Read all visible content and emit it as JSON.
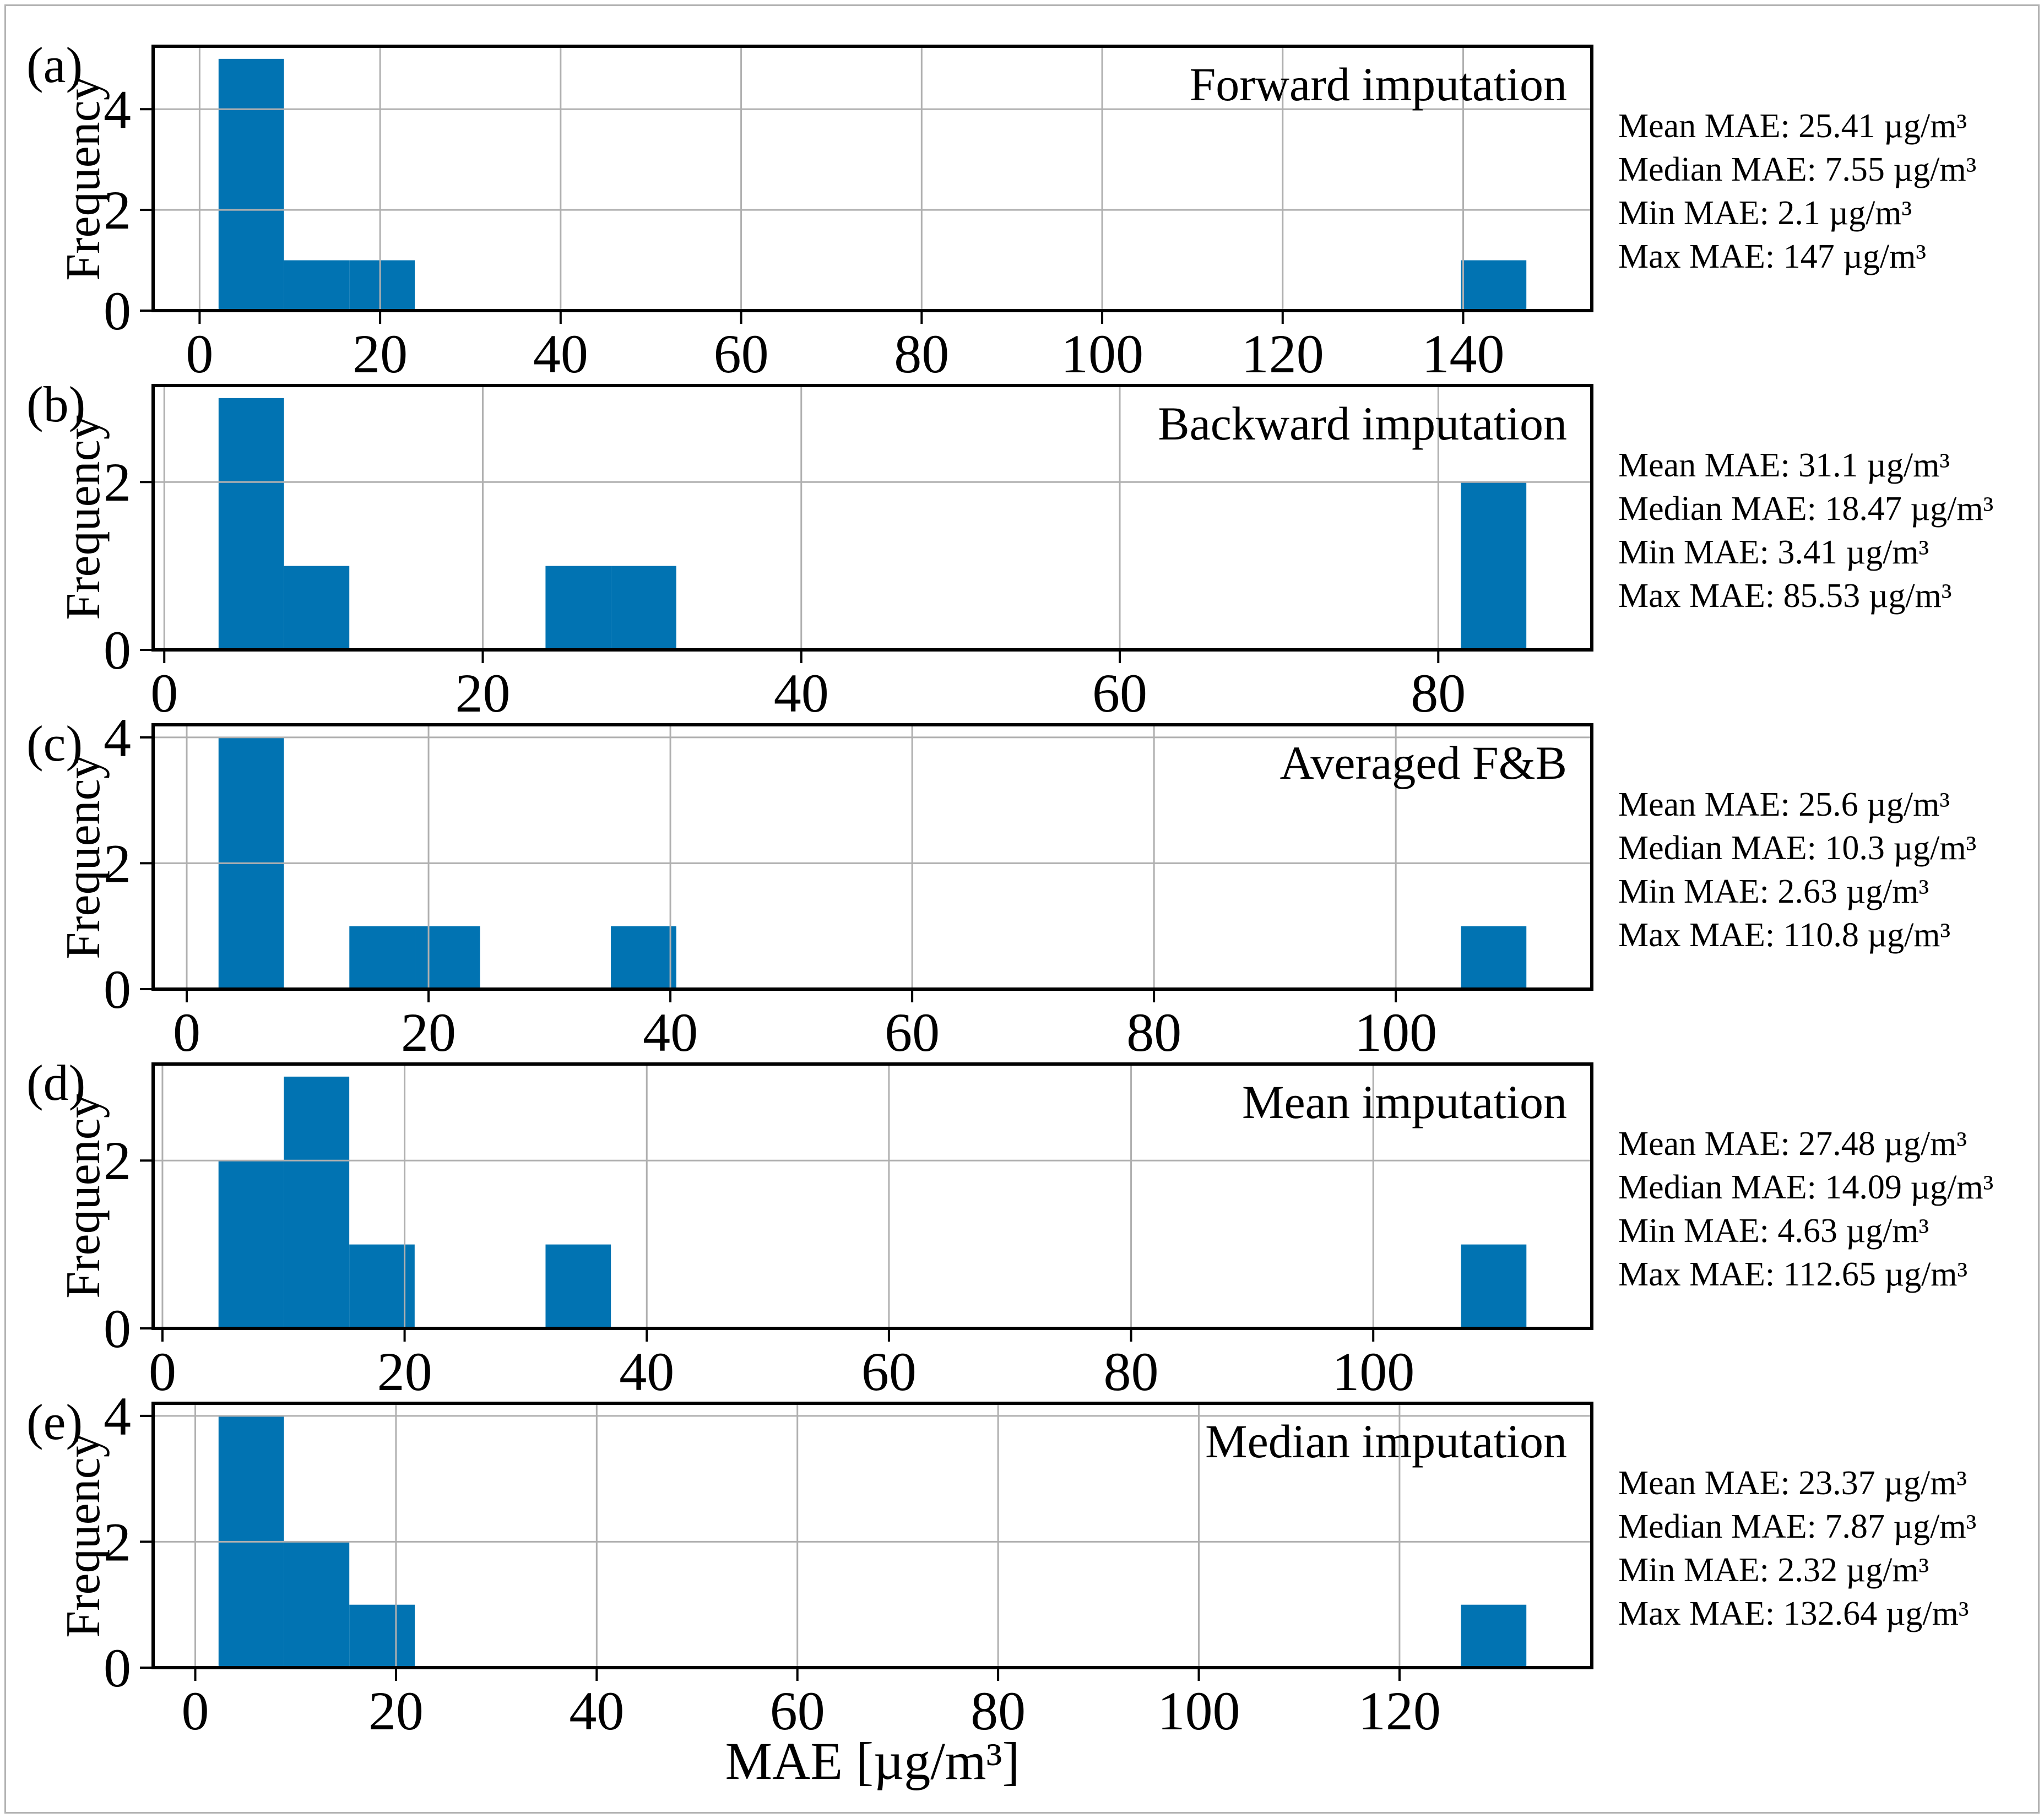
{
  "figure": {
    "xlabel": "MAE [µg/m³]",
    "ylabel": "Frequency",
    "bar_color": "#0173b2",
    "grid_color": "#b0b0b0",
    "spine_color": "#000000",
    "frame_color": "#b3b3b3"
  },
  "chart_data": [
    {
      "type": "bar",
      "panel": "(a)",
      "title": "Forward imputation",
      "ylabel": "Frequency",
      "xlim": [
        -5.15,
        154.25
      ],
      "ylim": [
        0,
        5.25
      ],
      "xticks": [
        0,
        20,
        40,
        60,
        80,
        100,
        120,
        140
      ],
      "yticks": [
        0,
        2,
        4
      ],
      "bars": [
        {
          "x0": 2.1,
          "x1": 9.35,
          "h": 5
        },
        {
          "x0": 9.35,
          "x1": 16.59,
          "h": 1
        },
        {
          "x0": 16.59,
          "x1": 23.84,
          "h": 1
        },
        {
          "x0": 139.76,
          "x1": 147.0,
          "h": 1
        }
      ],
      "stats": [
        "Mean MAE: 25.41 µg/m³",
        "Median MAE: 7.55 µg/m³",
        "Min MAE: 2.1 µg/m³",
        "Max MAE: 147 µg/m³"
      ]
    },
    {
      "type": "bar",
      "panel": "(b)",
      "title": "Backward imputation",
      "ylabel": "Frequency",
      "xlim": [
        -0.7,
        89.64
      ],
      "ylim": [
        0,
        3.15
      ],
      "xticks": [
        0,
        20,
        40,
        60,
        80
      ],
      "yticks": [
        0,
        2
      ],
      "bars": [
        {
          "x0": 3.41,
          "x1": 7.52,
          "h": 3
        },
        {
          "x0": 7.52,
          "x1": 11.62,
          "h": 1
        },
        {
          "x0": 23.94,
          "x1": 28.05,
          "h": 1
        },
        {
          "x0": 28.05,
          "x1": 32.15,
          "h": 1
        },
        {
          "x0": 81.42,
          "x1": 85.53,
          "h": 2
        }
      ],
      "stats": [
        "Mean MAE: 31.1 µg/m³",
        "Median MAE: 18.47 µg/m³",
        "Min MAE: 3.41 µg/m³",
        "Max MAE: 85.53 µg/m³"
      ]
    },
    {
      "type": "bar",
      "panel": "(c)",
      "title": "Averaged F&B",
      "ylabel": "Frequency",
      "xlim": [
        -2.78,
        116.21
      ],
      "ylim": [
        0,
        4.2
      ],
      "xticks": [
        0,
        20,
        40,
        60,
        80,
        100
      ],
      "yticks": [
        0,
        2,
        4
      ],
      "bars": [
        {
          "x0": 2.63,
          "x1": 8.04,
          "h": 4
        },
        {
          "x0": 13.45,
          "x1": 18.86,
          "h": 1
        },
        {
          "x0": 18.86,
          "x1": 24.26,
          "h": 1
        },
        {
          "x0": 35.08,
          "x1": 40.49,
          "h": 1
        },
        {
          "x0": 105.39,
          "x1": 110.8,
          "h": 1
        }
      ],
      "stats": [
        "Mean MAE: 25.6 µg/m³",
        "Median MAE: 10.3 µg/m³",
        "Min MAE: 2.63 µg/m³",
        "Max MAE: 110.8 µg/m³"
      ]
    },
    {
      "type": "bar",
      "panel": "(d)",
      "title": "Mean imputation",
      "ylabel": "Frequency",
      "xlim": [
        -0.77,
        118.05
      ],
      "ylim": [
        0,
        3.15
      ],
      "xticks": [
        0,
        20,
        40,
        60,
        80,
        100
      ],
      "yticks": [
        0,
        2
      ],
      "bars": [
        {
          "x0": 4.63,
          "x1": 10.03,
          "h": 2
        },
        {
          "x0": 10.03,
          "x1": 15.43,
          "h": 3
        },
        {
          "x0": 15.43,
          "x1": 20.83,
          "h": 1
        },
        {
          "x0": 31.64,
          "x1": 37.04,
          "h": 1
        },
        {
          "x0": 107.25,
          "x1": 112.65,
          "h": 1
        }
      ],
      "stats": [
        "Mean MAE: 27.48 µg/m³",
        "Median MAE: 14.09 µg/m³",
        "Min MAE: 4.63 µg/m³",
        "Max MAE: 112.65 µg/m³"
      ]
    },
    {
      "type": "bar",
      "panel": "(e)",
      "title": "Median imputation",
      "ylabel": "Frequency",
      "xlim": [
        -4.2,
        139.16
      ],
      "ylim": [
        0,
        4.2
      ],
      "xticks": [
        0,
        20,
        40,
        60,
        80,
        100,
        120
      ],
      "yticks": [
        0,
        2,
        4
      ],
      "bars": [
        {
          "x0": 2.32,
          "x1": 8.84,
          "h": 4
        },
        {
          "x0": 8.84,
          "x1": 15.35,
          "h": 2
        },
        {
          "x0": 15.35,
          "x1": 21.87,
          "h": 1
        },
        {
          "x0": 126.12,
          "x1": 132.64,
          "h": 1
        }
      ],
      "stats": [
        "Mean MAE: 23.37 µg/m³",
        "Median MAE: 7.87 µg/m³",
        "Min MAE: 2.32 µg/m³",
        "Max MAE: 132.64 µg/m³"
      ]
    }
  ]
}
